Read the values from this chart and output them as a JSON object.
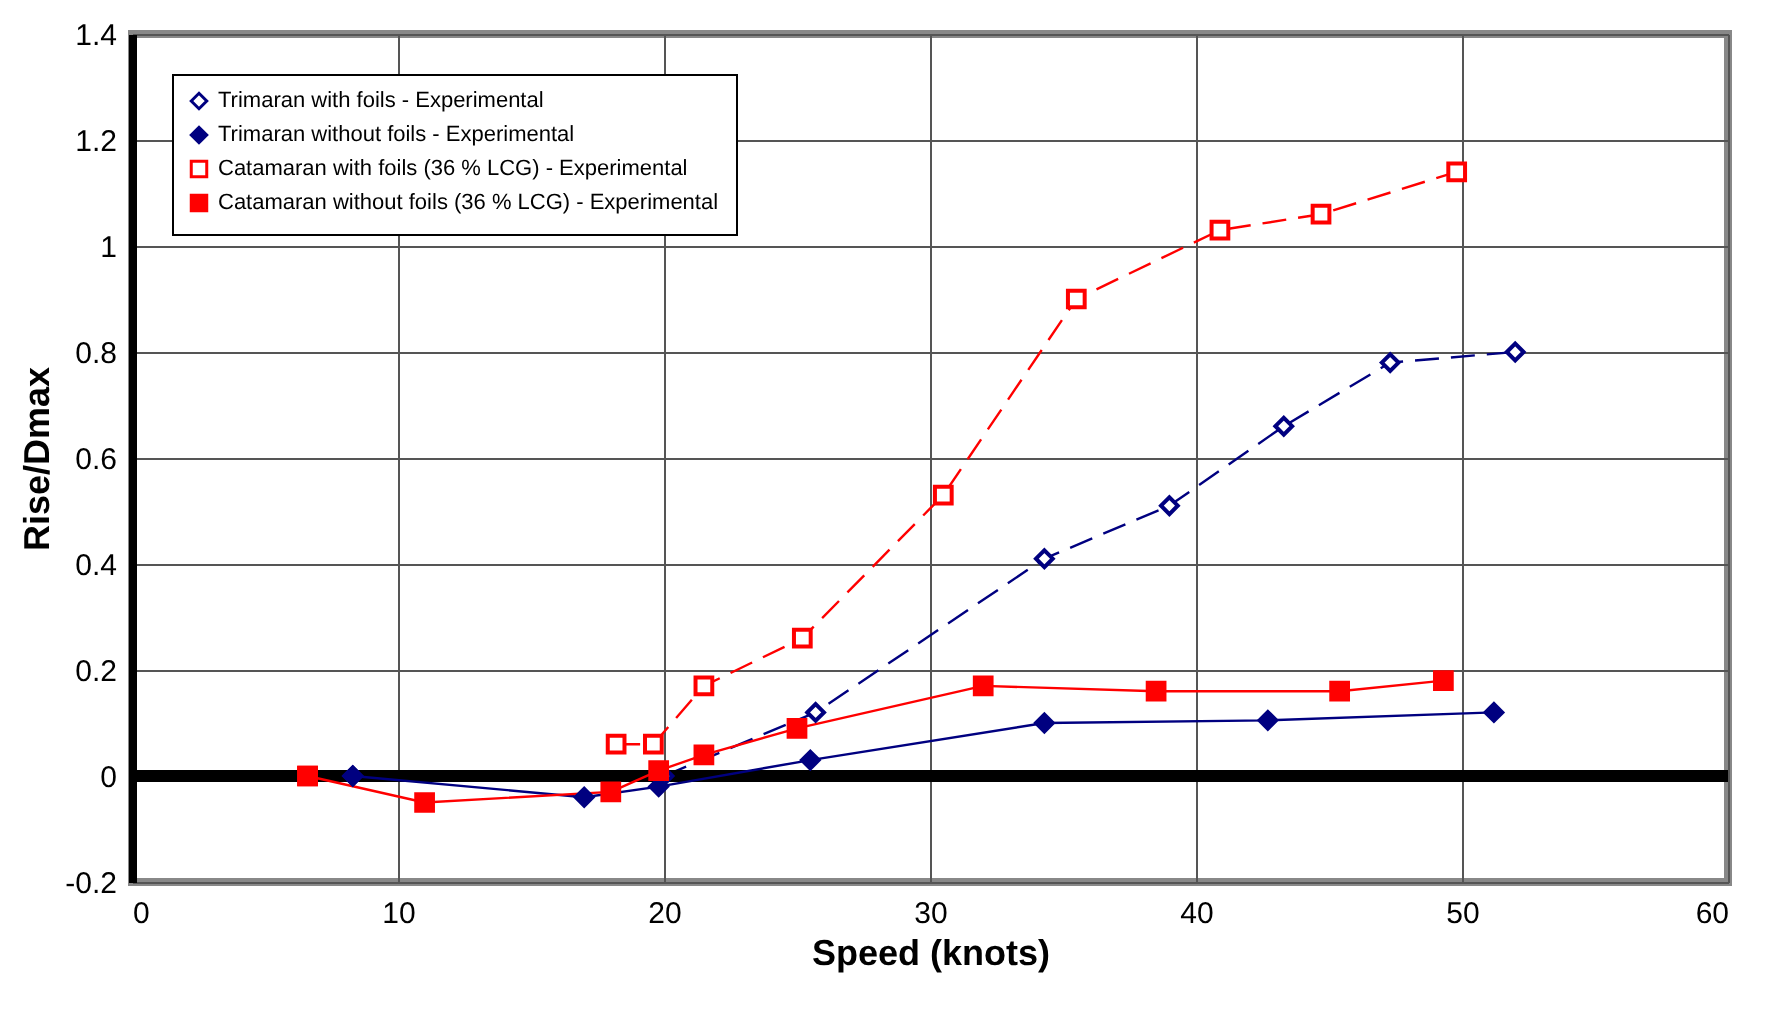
{
  "chart_data": {
    "type": "line",
    "xlabel": "Speed (knots)",
    "ylabel": "Rise/Dmax",
    "xlim": [
      0,
      60
    ],
    "ylim": [
      -0.2,
      1.4
    ],
    "xticks": [
      0,
      10,
      20,
      30,
      40,
      50,
      60
    ],
    "yticks": [
      -0.2,
      0,
      0.2,
      0.4,
      0.6,
      0.8,
      1,
      1.2,
      1.4
    ],
    "grid": true,
    "legend": "top left",
    "ref_lines": [
      {
        "axis": "y",
        "value": 0,
        "color": "#000000"
      }
    ],
    "series": [
      {
        "name": "Trimaran with foils - Experimental",
        "color": "#000080",
        "marker": "diamond",
        "line_style": "dashed",
        "x": [
          8.3,
          18,
          20,
          25.7,
          34.3,
          39,
          43.3,
          47.3,
          52
        ],
        "values": [
          0,
          null,
          0,
          0.12,
          0.41,
          0.51,
          0.66,
          0.78,
          0.8
        ]
      },
      {
        "name": "Trimaran without foils - Experimental",
        "color": "#000080",
        "marker": "diamond",
        "line_style": "solid",
        "x": [
          8.3,
          17,
          19.8,
          25.5,
          34.3,
          42.7,
          51.2
        ],
        "values": [
          0,
          -0.04,
          -0.02,
          0.03,
          0.1,
          0.105,
          0.12
        ]
      },
      {
        "name": "Catamaran with foils (36 % LCG) - Experimental",
        "color": "#ff0000",
        "marker": "square",
        "line_style": "dashed",
        "x": [
          6.6,
          11,
          18.2,
          19.6,
          21.5,
          25.2,
          30.5,
          35.5,
          40.9,
          44.7,
          49.8
        ],
        "values": [
          0,
          null,
          0.06,
          0.06,
          0.17,
          0.26,
          0.53,
          0.9,
          1.03,
          1.06,
          1.14
        ]
      },
      {
        "name": "Catamaran without foils (36 % LCG) - Experimental",
        "color": "#ff0000",
        "marker": "square",
        "line_style": "solid",
        "x": [
          6.6,
          11,
          18,
          19.8,
          21.5,
          25,
          32,
          38.5,
          45.4,
          49.3
        ],
        "values": [
          0,
          -0.05,
          -0.03,
          0.01,
          0.04,
          0.09,
          0.17,
          0.16,
          0.16,
          0.18
        ]
      }
    ]
  }
}
